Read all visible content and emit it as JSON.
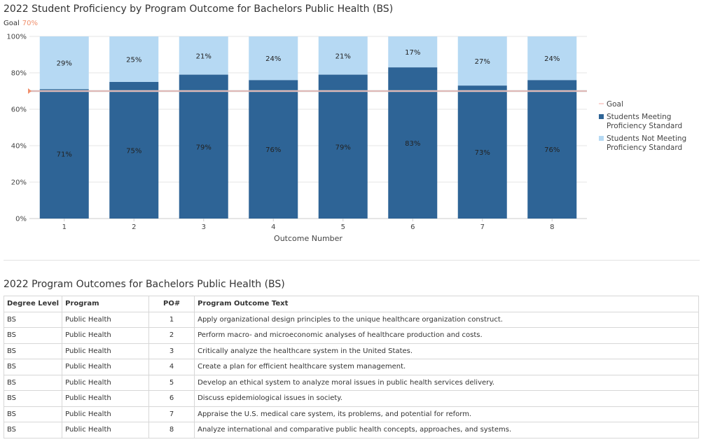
{
  "chart": {
    "title": "2022 Student Proficiency by Program Outcome for Bachelors Public Health (BS)",
    "goal_label": "Goal",
    "goal_value": "70%"
  },
  "chart_data": {
    "type": "bar",
    "stacked": true,
    "categories": [
      "1",
      "2",
      "3",
      "4",
      "5",
      "6",
      "7",
      "8"
    ],
    "series": [
      {
        "name": "Students Meeting Proficiency Standard",
        "values": [
          71,
          75,
          79,
          76,
          79,
          83,
          73,
          76
        ],
        "color": "#2e6496"
      },
      {
        "name": "Students Not Meeting Proficiency Standard",
        "values": [
          29,
          25,
          21,
          24,
          21,
          17,
          27,
          24
        ],
        "color": "#b6d9f3"
      }
    ],
    "goal": {
      "name": "Goal",
      "value": 70,
      "color": "#f6a9a3"
    },
    "xlabel": "Outcome Number",
    "ylabel": "",
    "ylim": [
      0,
      100
    ],
    "yticks": [
      "0%",
      "20%",
      "40%",
      "60%",
      "80%",
      "100%"
    ],
    "grid": true,
    "legend_position": "right"
  },
  "table": {
    "title": "2022 Program Outcomes for Bachelors Public Health (BS)",
    "headers": [
      "Degree Level",
      "Program",
      "PO#",
      "Program Outcome Text"
    ],
    "rows": [
      [
        "BS",
        "Public Health",
        "1",
        "Apply organizational design principles to the unique healthcare organization construct."
      ],
      [
        "BS",
        "Public Health",
        "2",
        "Perform macro- and microeconomic analyses of healthcare production and costs."
      ],
      [
        "BS",
        "Public Health",
        "3",
        "Critically analyze the healthcare system in the United States."
      ],
      [
        "BS",
        "Public Health",
        "4",
        "Create a plan for efficient healthcare system management."
      ],
      [
        "BS",
        "Public Health",
        "5",
        "Develop an ethical system to analyze moral issues in public health services delivery."
      ],
      [
        "BS",
        "Public Health",
        "6",
        "Discuss epidemiological issues in society."
      ],
      [
        "BS",
        "Public Health",
        "7",
        "Appraise the U.S. medical care system, its problems, and potential for reform."
      ],
      [
        "BS",
        "Public Health",
        "8",
        "Analyze international and comparative public health concepts, approaches, and systems."
      ]
    ]
  }
}
